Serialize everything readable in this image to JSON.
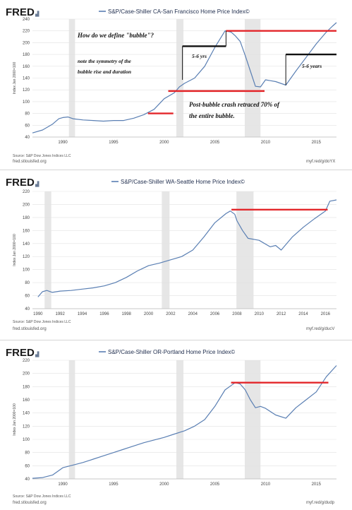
{
  "brand": "FRED",
  "chart_data": [
    {
      "type": "line",
      "title": "S&P/Case-Shiller CA-San Francisco Home Price Index©",
      "ylabel": "Index Jan 2000=100",
      "series": [
        {
          "name": "S&P/Case-Shiller CA-San Francisco Home Price Index©",
          "color": "#5a7fb3",
          "points": [
            [
              1987,
              47
            ],
            [
              1988,
              52
            ],
            [
              1989,
              62
            ],
            [
              1989.6,
              71
            ],
            [
              1990,
              73
            ],
            [
              1990.5,
              74
            ],
            [
              1991,
              71
            ],
            [
              1992,
              69
            ],
            [
              1993,
              68
            ],
            [
              1994,
              67
            ],
            [
              1995,
              68
            ],
            [
              1996,
              68
            ],
            [
              1997,
              72
            ],
            [
              1998,
              78
            ],
            [
              1999,
              87
            ],
            [
              2000,
              105
            ],
            [
              2001,
              115
            ],
            [
              2001.5,
              125
            ],
            [
              2002,
              131
            ],
            [
              2003,
              140
            ],
            [
              2004,
              160
            ],
            [
              2005,
              192
            ],
            [
              2006,
              220
            ],
            [
              2006.6,
              218
            ],
            [
              2007,
              212
            ],
            [
              2007.5,
              202
            ],
            [
              2008,
              178
            ],
            [
              2008.5,
              152
            ],
            [
              2009,
              126
            ],
            [
              2009.5,
              125
            ],
            [
              2010,
              137
            ],
            [
              2011,
              134
            ],
            [
              2012,
              128
            ],
            [
              2013,
              152
            ],
            [
              2014,
              175
            ],
            [
              2015,
              198
            ],
            [
              2016,
              218
            ],
            [
              2016.6,
              228
            ],
            [
              2017,
              234
            ]
          ]
        }
      ],
      "x_ticks": [
        "1990",
        "1995",
        "2000",
        "2005",
        "2010",
        "2015"
      ],
      "y_ticks": [
        "40",
        "60",
        "80",
        "100",
        "120",
        "140",
        "160",
        "180",
        "200",
        "220",
        "240"
      ],
      "xlim": [
        1987,
        2017
      ],
      "ylim": [
        40,
        240
      ],
      "recessions": [
        [
          1990.6,
          1991.2
        ],
        [
          2001.2,
          2001.9
        ],
        [
          2007.95,
          2009.5
        ]
      ],
      "red_lines": [
        [
          1998.4,
          2000.9,
          80
        ],
        [
          2000.4,
          2009.9,
          118
        ],
        [
          2006.1,
          2017,
          220
        ]
      ],
      "black_lines": [
        [
          2001.8,
          2006.1,
          194
        ],
        [
          2012,
          2017,
          180
        ]
      ],
      "vlines": [
        [
          2001.8,
          137,
          194
        ],
        [
          2006.1,
          194,
          220
        ],
        [
          2012,
          128,
          180
        ]
      ],
      "annotations": [
        "How do we define \"bubble\"?",
        "note the symmetry of the",
        "bubble rise and duration",
        "5-6 yrs",
        "5-6 years",
        "Post-bubble crash retraced 70% of",
        "the entire bubble."
      ],
      "source": "Source: S&P Dow Jones Indices LLC",
      "site": "fred.stlouisfed.org",
      "link": "myf.red/g/doYX"
    },
    {
      "type": "line",
      "title": "S&P/Case-Shiller WA-Seattle Home Price Index©",
      "ylabel": "Index Jan 2000=100",
      "series": [
        {
          "name": "S&P/Case-Shiller WA-Seattle Home Price Index©",
          "color": "#5a7fb3",
          "points": [
            [
              1990,
              58
            ],
            [
              1990.4,
              66
            ],
            [
              1990.8,
              68
            ],
            [
              1991.3,
              65
            ],
            [
              1992,
              67
            ],
            [
              1993,
              68
            ],
            [
              1994,
              70
            ],
            [
              1995,
              72
            ],
            [
              1996,
              75
            ],
            [
              1997,
              80
            ],
            [
              1998,
              88
            ],
            [
              1999,
              98
            ],
            [
              2000,
              106
            ],
            [
              2001,
              110
            ],
            [
              2002,
              115
            ],
            [
              2003,
              120
            ],
            [
              2004,
              130
            ],
            [
              2005,
              150
            ],
            [
              2006,
              172
            ],
            [
              2007,
              186
            ],
            [
              2007.4,
              190
            ],
            [
              2007.8,
              185
            ],
            [
              2008,
              175
            ],
            [
              2008.5,
              160
            ],
            [
              2009,
              148
            ],
            [
              2010,
              145
            ],
            [
              2011,
              135
            ],
            [
              2011.5,
              137
            ],
            [
              2012,
              130
            ],
            [
              2013,
              150
            ],
            [
              2014,
              165
            ],
            [
              2015,
              178
            ],
            [
              2016,
              190
            ],
            [
              2016.4,
              205
            ],
            [
              2017,
              207
            ]
          ]
        }
      ],
      "x_ticks": [
        "1990",
        "1992",
        "1994",
        "1996",
        "1998",
        "2000",
        "2002",
        "2004",
        "2006",
        "2008",
        "2010",
        "2012",
        "2014",
        "2016"
      ],
      "y_ticks": [
        "40",
        "60",
        "80",
        "100",
        "120",
        "140",
        "160",
        "180",
        "200",
        "220"
      ],
      "xlim": [
        1989.5,
        2017
      ],
      "ylim": [
        40,
        220
      ],
      "recessions": [
        [
          1990.6,
          1991.2
        ],
        [
          2001.2,
          2001.9
        ],
        [
          2007.95,
          2009.5
        ]
      ],
      "red_lines": [
        [
          2007.5,
          2016.2,
          192
        ]
      ],
      "source": "Source: S&P Dow Jones Indices LLC",
      "site": "fred.stlouisfed.org",
      "link": "myf.red/g/ducV"
    },
    {
      "type": "line",
      "title": "S&P/Case-Shiller OR-Portland Home Price Index©",
      "ylabel": "Index Jan 2000=100",
      "series": [
        {
          "name": "S&P/Case-Shiller OR-Portland Home Price Index©",
          "color": "#5a7fb3",
          "points": [
            [
              1987,
              41
            ],
            [
              1988,
              42
            ],
            [
              1989,
              46
            ],
            [
              1990,
              57
            ],
            [
              1991,
              61
            ],
            [
              1992,
              65
            ],
            [
              1993,
              70
            ],
            [
              1994,
              75
            ],
            [
              1995,
              80
            ],
            [
              1996,
              85
            ],
            [
              1997,
              90
            ],
            [
              1998,
              95
            ],
            [
              1999,
              99
            ],
            [
              2000,
              103
            ],
            [
              2001,
              108
            ],
            [
              2002,
              113
            ],
            [
              2003,
              120
            ],
            [
              2004,
              130
            ],
            [
              2005,
              150
            ],
            [
              2006,
              175
            ],
            [
              2007,
              186
            ],
            [
              2007.5,
              184
            ],
            [
              2008,
              175
            ],
            [
              2008.5,
              160
            ],
            [
              2009,
              148
            ],
            [
              2009.5,
              150
            ],
            [
              2010,
              147
            ],
            [
              2011,
              137
            ],
            [
              2012,
              132
            ],
            [
              2013,
              148
            ],
            [
              2014,
              160
            ],
            [
              2015,
              172
            ],
            [
              2016,
              195
            ],
            [
              2017,
              212
            ]
          ]
        }
      ],
      "x_ticks": [
        "1990",
        "1995",
        "2000",
        "2005",
        "2010",
        "2015"
      ],
      "y_ticks": [
        "40",
        "60",
        "80",
        "100",
        "120",
        "140",
        "160",
        "180",
        "200",
        "220"
      ],
      "xlim": [
        1987,
        2017
      ],
      "ylim": [
        40,
        220
      ],
      "recessions": [
        [
          1990.6,
          1991.2
        ],
        [
          2001.2,
          2001.9
        ],
        [
          2007.95,
          2009.5
        ]
      ],
      "red_lines": [
        [
          2006.6,
          2016.2,
          186
        ]
      ],
      "source": "Source: S&P Dow Jones Indices LLC",
      "site": "fred.stlouisfed.org",
      "link": "myf.red/g/dudp"
    }
  ]
}
